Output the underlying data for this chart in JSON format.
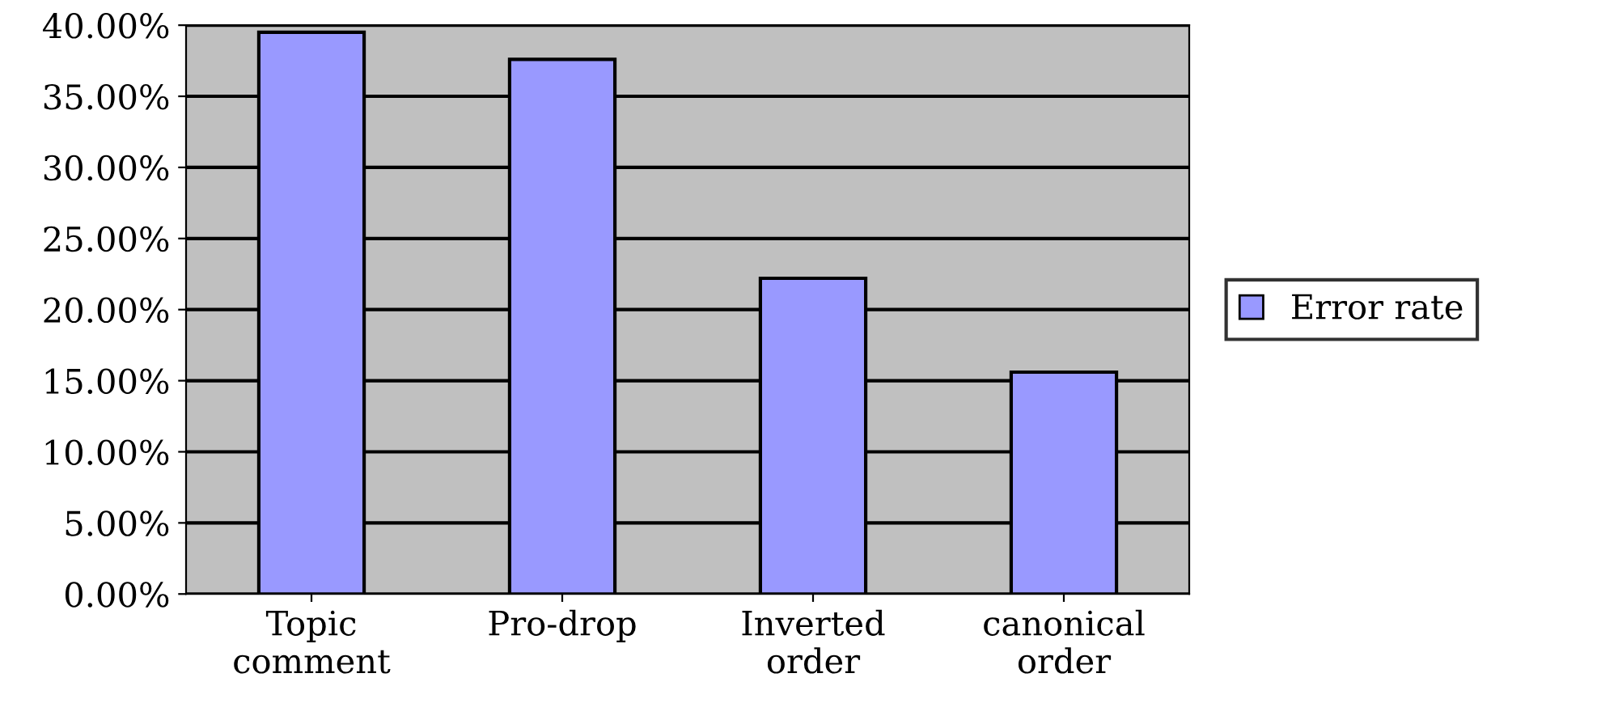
{
  "chart_data": {
    "type": "bar",
    "categories": [
      "Topic\ncomment",
      "Pro-drop",
      "Inverted\norder",
      "canonical\norder"
    ],
    "series": [
      {
        "name": "Error rate",
        "color": "#9999ff",
        "values": [
          39.5,
          37.6,
          22.2,
          15.6
        ]
      }
    ],
    "ylim": [
      0,
      40
    ],
    "yticks": [
      {
        "value": 0,
        "label": "0.00%"
      },
      {
        "value": 5,
        "label": "5.00%"
      },
      {
        "value": 10,
        "label": "10.00%"
      },
      {
        "value": 15,
        "label": "15.00%"
      },
      {
        "value": 20,
        "label": "20.00%"
      },
      {
        "value": 25,
        "label": "25.00%"
      },
      {
        "value": 30,
        "label": "30.00%"
      },
      {
        "value": 35,
        "label": "35.00%"
      },
      {
        "value": 40,
        "label": "40.00%"
      }
    ],
    "grid": "y",
    "legend": "right"
  }
}
